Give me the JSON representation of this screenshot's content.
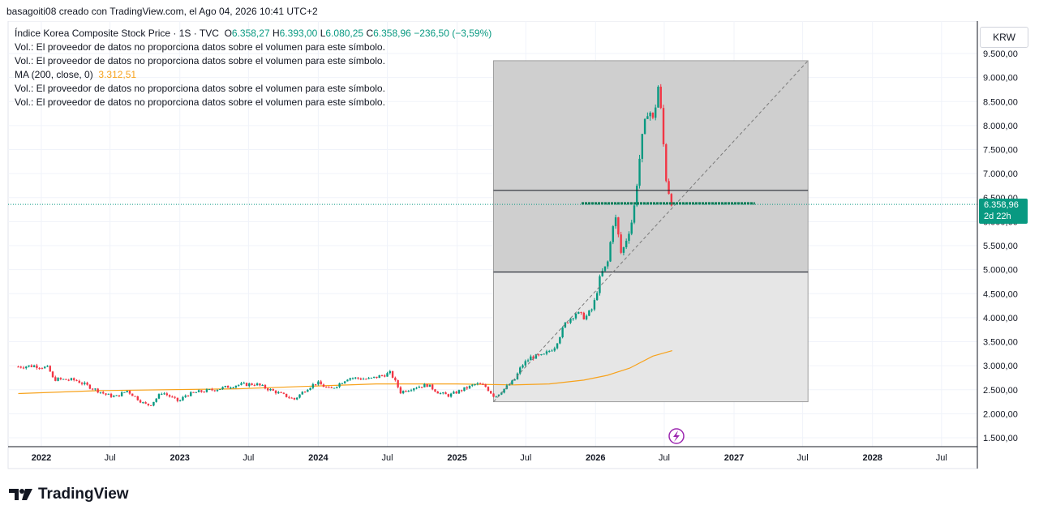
{
  "header": {
    "credit": "basagoiti08 creado con TradingView.com, el Ago 04, 2026 10:41 UTC+2"
  },
  "legend": {
    "symbol": "Índice Korea Composite Stock Price · 1S · TVC",
    "o_label": "O",
    "o_value": "6.358,27",
    "h_label": "H",
    "h_value": "6.393,00",
    "l_label": "L",
    "l_value": "6.080,25",
    "c_label": "C",
    "c_value": "6.358,96",
    "change": "−236,50 (−3,59%)",
    "vol_note": "Vol.: El proveedor de datos no proporciona datos sobre el volumen para este símbolo.",
    "ma_label": "MA (200, close, 0)",
    "ma_value": "3.312,51"
  },
  "price_axis": {
    "currency": "KRW",
    "last_price": "6.358,96",
    "countdown": "2d 22h"
  },
  "brand": {
    "name": "TradingView"
  },
  "colors": {
    "up": "#089981",
    "down": "#f23645",
    "ma": "#f7a21b",
    "box_dark": "#cfcfcf",
    "box_light": "#e6e6e6"
  },
  "chart_data": {
    "type": "candlestick",
    "title": "Índice Korea Composite Stock Price · 1S · TVC",
    "ylim": [
      1350,
      9800
    ],
    "y_ticks": [
      1500,
      2000,
      2500,
      3000,
      3500,
      4000,
      4500,
      5000,
      5500,
      6000,
      6500,
      7000,
      7500,
      8000,
      8500,
      9000,
      9500
    ],
    "y_tick_labels": [
      "1.500,00",
      "2.000,00",
      "2.500,00",
      "3.000,00",
      "3.500,00",
      "4.000,00",
      "4.500,00",
      "5.000,00",
      "5.500,00",
      "6.000,00",
      "6.500,00",
      "7.000,00",
      "7.500,00",
      "8.000,00",
      "8.500,00",
      "9.000,00",
      "9.500,00"
    ],
    "x_ticks": [
      "2022",
      "Jul",
      "2023",
      "Jul",
      "2024",
      "Jul",
      "2025",
      "Jul",
      "2026",
      "Jul",
      "2027",
      "Jul",
      "2028",
      "Jul"
    ],
    "x_tick_dates": [
      "2022-01-01",
      "2022-07-01",
      "2023-01-01",
      "2023-07-01",
      "2024-01-01",
      "2024-07-01",
      "2025-01-01",
      "2025-07-01",
      "2026-01-01",
      "2026-07-01",
      "2027-01-01",
      "2027-07-01",
      "2028-01-01",
      "2028-07-01"
    ],
    "grid": true,
    "close_path": [
      [
        "2021-11-01",
        2980
      ],
      [
        "2021-12-15",
        3000
      ],
      [
        "2022-01-20",
        2950
      ],
      [
        "2022-02-01",
        2720
      ],
      [
        "2022-04-01",
        2700
      ],
      [
        "2022-06-20",
        2400
      ],
      [
        "2022-07-15",
        2350
      ],
      [
        "2022-08-15",
        2480
      ],
      [
        "2022-09-30",
        2200
      ],
      [
        "2022-10-15",
        2180
      ],
      [
        "2022-11-15",
        2450
      ],
      [
        "2022-12-30",
        2250
      ],
      [
        "2023-01-15",
        2380
      ],
      [
        "2023-02-15",
        2450
      ],
      [
        "2023-04-01",
        2500
      ],
      [
        "2023-06-01",
        2600
      ],
      [
        "2023-07-20",
        2620
      ],
      [
        "2023-08-20",
        2520
      ],
      [
        "2023-10-30",
        2300
      ],
      [
        "2023-12-01",
        2520
      ],
      [
        "2023-12-28",
        2650
      ],
      [
        "2024-02-01",
        2500
      ],
      [
        "2024-03-20",
        2750
      ],
      [
        "2024-05-15",
        2720
      ],
      [
        "2024-07-10",
        2850
      ],
      [
        "2024-08-05",
        2450
      ],
      [
        "2024-09-10",
        2550
      ],
      [
        "2024-10-15",
        2600
      ],
      [
        "2024-11-15",
        2430
      ],
      [
        "2024-12-10",
        2380
      ],
      [
        "2025-01-15",
        2500
      ],
      [
        "2025-02-20",
        2620
      ],
      [
        "2025-03-15",
        2580
      ],
      [
        "2025-04-10",
        2350
      ],
      [
        "2025-05-10",
        2550
      ],
      [
        "2025-06-01",
        2700
      ],
      [
        "2025-06-20",
        3000
      ],
      [
        "2025-07-15",
        3180
      ],
      [
        "2025-08-15",
        3200
      ],
      [
        "2025-09-15",
        3400
      ],
      [
        "2025-10-15",
        3900
      ],
      [
        "2025-11-10",
        4100
      ],
      [
        "2025-12-05",
        4000
      ],
      [
        "2025-12-25",
        4200
      ],
      [
        "2026-01-15",
        4900
      ],
      [
        "2026-02-01",
        5100
      ],
      [
        "2026-02-20",
        6200
      ],
      [
        "2026-03-10",
        5300
      ],
      [
        "2026-04-10",
        6100
      ],
      [
        "2026-05-01",
        7600
      ],
      [
        "2026-05-20",
        8400
      ],
      [
        "2026-06-05",
        8000
      ],
      [
        "2026-06-12",
        9000
      ],
      [
        "2026-06-20",
        8500
      ],
      [
        "2026-06-30",
        7500
      ],
      [
        "2026-07-08",
        6700
      ],
      [
        "2026-07-15",
        6595
      ],
      [
        "2026-07-22",
        6359
      ]
    ],
    "ma_200": {
      "name": "MA (200, close, 0)",
      "last_value": 3312.51,
      "points": [
        [
          "2021-11-01",
          2420
        ],
        [
          "2022-06-01",
          2480
        ],
        [
          "2023-06-01",
          2520
        ],
        [
          "2024-06-01",
          2620
        ],
        [
          "2025-01-01",
          2620
        ],
        [
          "2025-06-01",
          2600
        ],
        [
          "2025-09-01",
          2620
        ],
        [
          "2025-12-01",
          2700
        ],
        [
          "2026-02-01",
          2800
        ],
        [
          "2026-04-01",
          2950
        ],
        [
          "2026-06-01",
          3200
        ],
        [
          "2026-07-22",
          3312
        ]
      ]
    },
    "annotations": {
      "last_price_line": 6358.96,
      "box_start": "2025-04-07",
      "box_end": "2027-07-15",
      "box_top": 9350,
      "box_bottom": 2250,
      "level_upper": 6650,
      "level_lower": 4950,
      "green_level": 6380,
      "green_level_start": "2025-11-25",
      "green_level_end": "2027-02-25",
      "trend_start": [
        "2025-04-07",
        2250
      ],
      "trend_end": [
        "2027-07-15",
        9350
      ]
    }
  }
}
